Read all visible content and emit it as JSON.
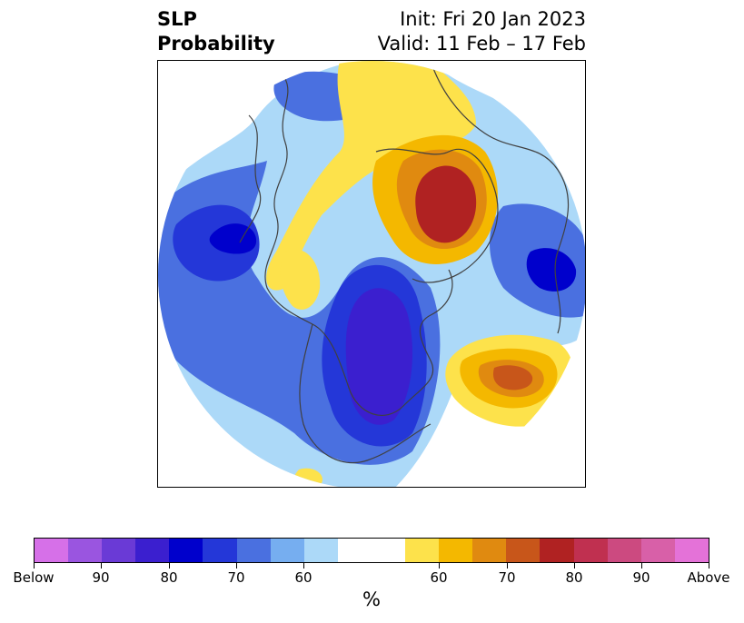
{
  "header": {
    "title_line1": "SLP",
    "title_line2": "Probability",
    "init": "Init: Fri 20 Jan 2023",
    "valid": "Valid: 11 Feb – 17 Feb"
  },
  "colorbar": {
    "unit": "%",
    "colors": [
      "#d670e8",
      "#9a55e0",
      "#6a3ad6",
      "#3b1fcf",
      "#0000cc",
      "#2437d8",
      "#4a70e0",
      "#76aef0",
      "#acd9f8",
      "#ffffff",
      "#ffffff",
      "#fde24b",
      "#f4b800",
      "#e08a10",
      "#c8561a",
      "#b02222",
      "#c03050",
      "#cc4a80",
      "#d860a8",
      "#e472d8"
    ],
    "tick_labels": [
      "Below",
      "90",
      "80",
      "70",
      "60",
      "60",
      "70",
      "80",
      "90",
      "Above"
    ]
  },
  "colors": {
    "below_strong": "#0000cc",
    "above_strong": "#b02222",
    "coastline": "#404040"
  }
}
